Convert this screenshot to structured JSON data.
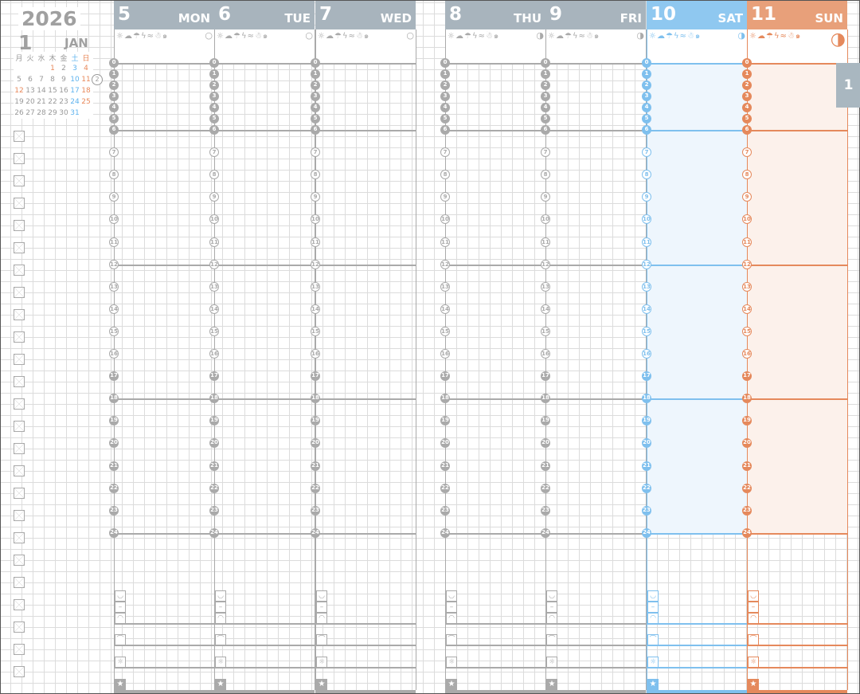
{
  "year": "2026",
  "month_number": "1",
  "month_name": "JAN",
  "mini_calendar": {
    "weekday_headers": [
      "月",
      "火",
      "水",
      "木",
      "金",
      "土",
      "日"
    ],
    "weeks": [
      [
        "",
        "",
        "",
        "1",
        "2",
        "3",
        "4"
      ],
      [
        "5",
        "6",
        "7",
        "8",
        "9",
        "10",
        "11"
      ],
      [
        "12",
        "13",
        "14",
        "15",
        "16",
        "17",
        "18"
      ],
      [
        "19",
        "20",
        "21",
        "22",
        "23",
        "24",
        "25"
      ],
      [
        "26",
        "27",
        "28",
        "29",
        "30",
        "31",
        ""
      ]
    ],
    "holidays": [
      "1",
      "12"
    ],
    "current_week_number": "2"
  },
  "colors": {
    "weekday": "#a8b4bd",
    "saturday": "#8fc8f0",
    "sunday": "#e8a07a",
    "weekday_line": "#aaaaaa",
    "saturday_line": "#7fc0ee",
    "sunday_line": "#e5895c"
  },
  "weather_icons": [
    "sun-icon",
    "cloud-icon",
    "umbrella-icon",
    "lightning-icon",
    "wind-icon",
    "snowman-icon",
    "typhoon-icon"
  ],
  "days": [
    {
      "number": "5",
      "weekday": "MON",
      "type": "weekday",
      "moon": "waxing-crescent-icon"
    },
    {
      "number": "6",
      "weekday": "TUE",
      "type": "weekday",
      "moon": "waxing-crescent-icon"
    },
    {
      "number": "7",
      "weekday": "WED",
      "type": "weekday",
      "moon": "waxing-crescent-icon"
    },
    {
      "number": "8",
      "weekday": "THU",
      "type": "weekday",
      "moon": "waxing-crescent-icon"
    },
    {
      "number": "9",
      "weekday": "FRI",
      "type": "weekday",
      "moon": "waxing-crescent-icon"
    },
    {
      "number": "10",
      "weekday": "SAT",
      "type": "saturday",
      "moon": "first-quarter-icon"
    },
    {
      "number": "11",
      "weekday": "SUN",
      "type": "sunday",
      "moon": "first-quarter-large-icon"
    }
  ],
  "hours": [
    "0",
    "1",
    "2",
    "3",
    "4",
    "5",
    "6",
    "7",
    "8",
    "9",
    "10",
    "11",
    "12",
    "13",
    "14",
    "15",
    "16",
    "17",
    "18",
    "19",
    "20",
    "21",
    "22",
    "23",
    "24"
  ],
  "month_tab": "1"
}
